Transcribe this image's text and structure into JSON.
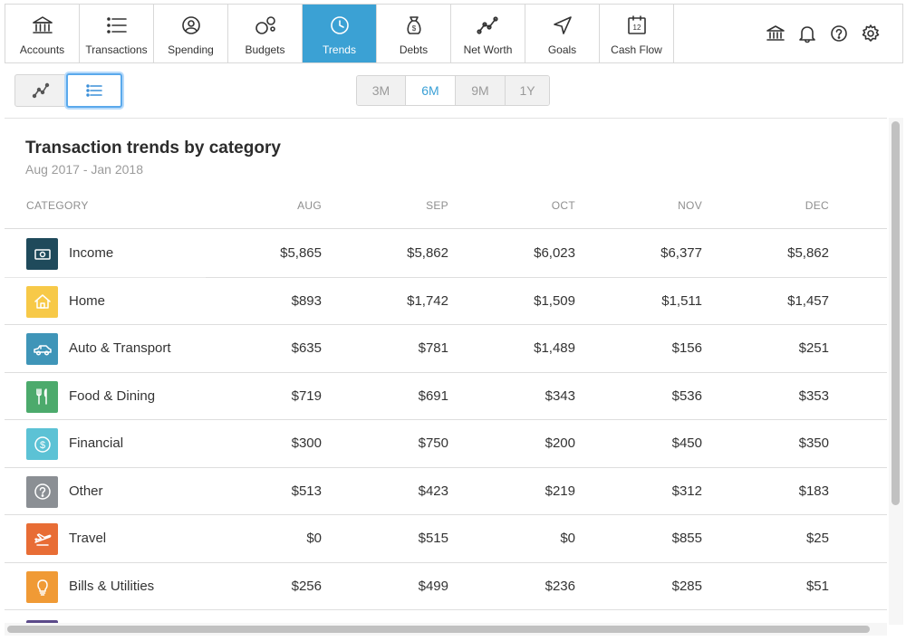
{
  "nav": {
    "items": [
      {
        "label": "Accounts",
        "icon": "bank-icon"
      },
      {
        "label": "Transactions",
        "icon": "list-icon"
      },
      {
        "label": "Spending",
        "icon": "spending-icon"
      },
      {
        "label": "Budgets",
        "icon": "budgets-icon"
      },
      {
        "label": "Trends",
        "icon": "clock-icon",
        "active": true
      },
      {
        "label": "Debts",
        "icon": "money-bag-icon"
      },
      {
        "label": "Net Worth",
        "icon": "line-graph-icon"
      },
      {
        "label": "Goals",
        "icon": "navigation-arrow-icon"
      },
      {
        "label": "Cash Flow",
        "icon": "calendar-icon",
        "calendar_day": "12"
      }
    ],
    "right_icons": [
      "bank-icon",
      "bell-icon",
      "help-icon",
      "settings-gear-icon"
    ]
  },
  "toolbar": {
    "view_modes": [
      {
        "icon": "line-chart-icon",
        "selected": false
      },
      {
        "icon": "list-view-icon",
        "selected": true
      }
    ],
    "ranges": [
      "3M",
      "6M",
      "9M",
      "1Y"
    ],
    "active_range": "6M"
  },
  "panel": {
    "title": "Transaction trends by category",
    "subtitle": "Aug 2017 - Jan 2018"
  },
  "table": {
    "headers": {
      "category": "CATEGORY",
      "aug": "AUG",
      "sep": "SEP",
      "oct": "OCT",
      "nov": "NOV",
      "dec": "DEC"
    },
    "rows": [
      {
        "name": "Income",
        "color": "#1f4a5b",
        "icon": "cash-icon",
        "aug": "$5,865",
        "sep": "$5,862",
        "oct": "$6,023",
        "nov": "$6,377",
        "dec": "$5,862"
      },
      {
        "name": "Home",
        "color": "#f7c948",
        "icon": "house-icon",
        "aug": "$893",
        "sep": "$1,742",
        "oct": "$1,509",
        "nov": "$1,511",
        "dec": "$1,457"
      },
      {
        "name": "Auto & Transport",
        "color": "#3f95b8",
        "icon": "car-icon",
        "aug": "$635",
        "sep": "$781",
        "oct": "$1,489",
        "nov": "$156",
        "dec": "$251"
      },
      {
        "name": "Food & Dining",
        "color": "#4caa6c",
        "icon": "fork-knife-icon",
        "aug": "$719",
        "sep": "$691",
        "oct": "$343",
        "nov": "$536",
        "dec": "$353"
      },
      {
        "name": "Financial",
        "color": "#5cc2d5",
        "icon": "dollar-circle-icon",
        "aug": "$300",
        "sep": "$750",
        "oct": "$200",
        "nov": "$450",
        "dec": "$350"
      },
      {
        "name": "Other",
        "color": "#8b8f94",
        "icon": "question-circle-icon",
        "aug": "$513",
        "sep": "$423",
        "oct": "$219",
        "nov": "$312",
        "dec": "$183"
      },
      {
        "name": "Travel",
        "color": "#e86d35",
        "icon": "airplane-icon",
        "aug": "$0",
        "sep": "$515",
        "oct": "$0",
        "nov": "$855",
        "dec": "$25"
      },
      {
        "name": "Bills & Utilities",
        "color": "#f09a35",
        "icon": "lightbulb-icon",
        "aug": "$256",
        "sep": "$499",
        "oct": "$236",
        "nov": "$285",
        "dec": "$51"
      }
    ]
  }
}
